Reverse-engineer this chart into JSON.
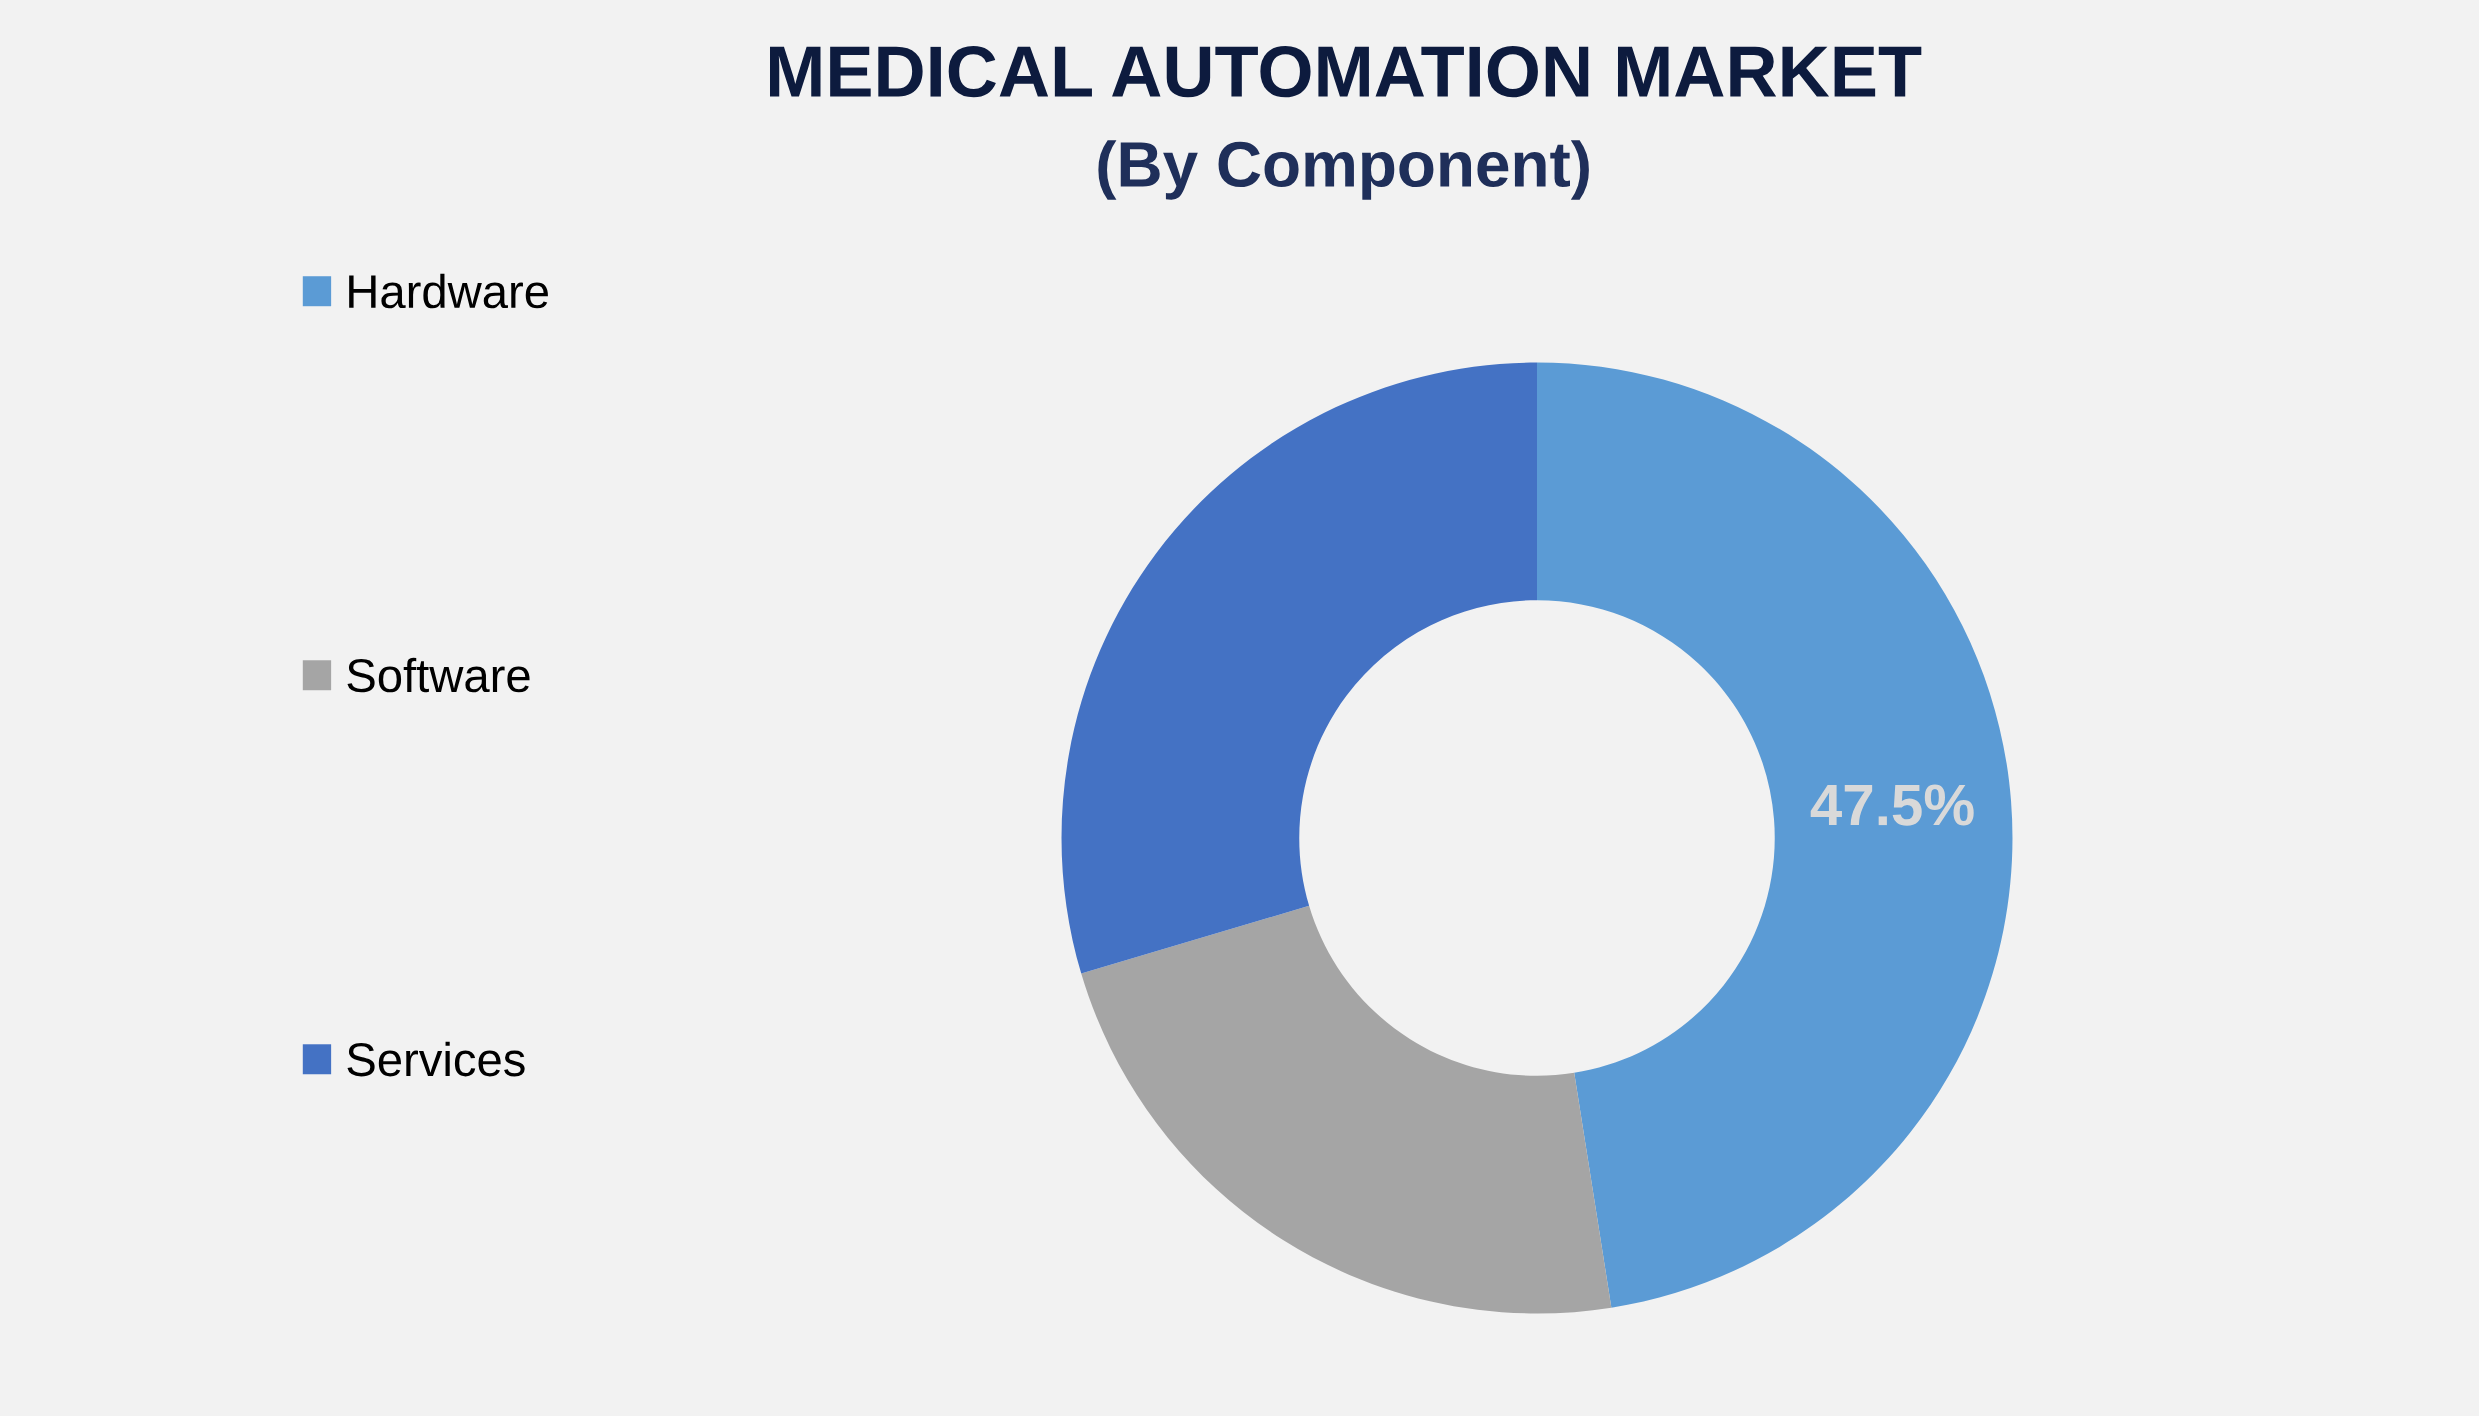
{
  "chart_data": {
    "type": "donut",
    "title": "MEDICAL AUTOMATION MARKET",
    "subtitle": "(By Component)",
    "categories": [
      "Hardware",
      "Software",
      "Services"
    ],
    "values": [
      47.5,
      22.9,
      29.6
    ],
    "colors": [
      "#5b9bd5",
      "#a5a5a5",
      "#4472c4"
    ],
    "value_labels": [
      "47.5%",
      null,
      null
    ],
    "legend": "left"
  }
}
